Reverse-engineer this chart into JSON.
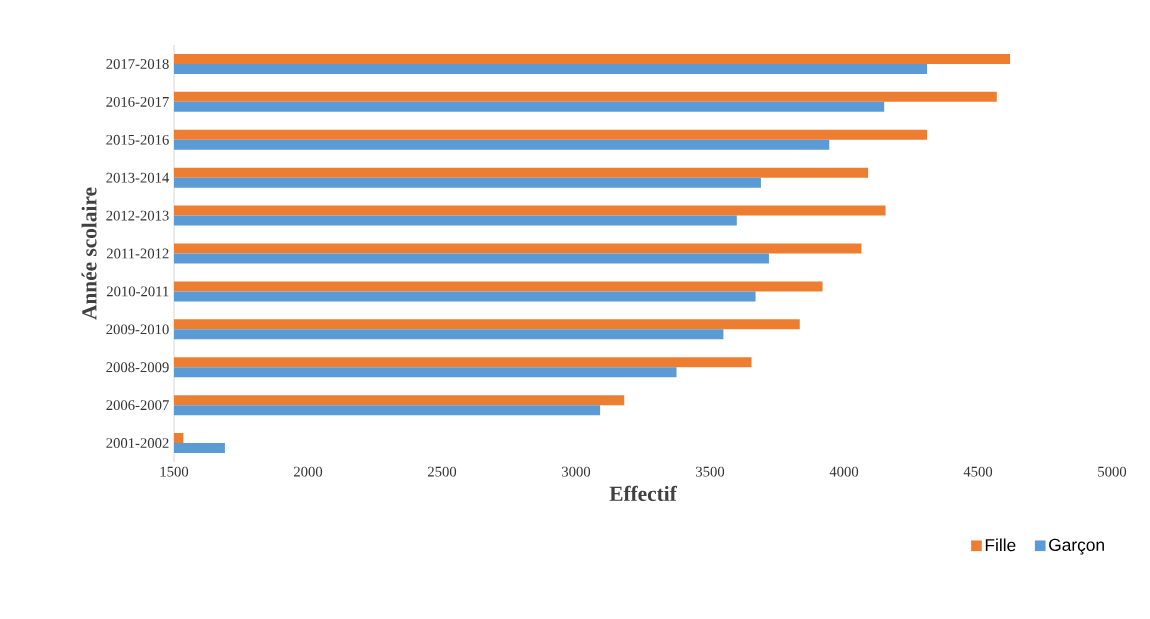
{
  "chart_data": {
    "type": "bar",
    "orientation": "horizontal",
    "xlabel": "Effectif",
    "ylabel": "Année scolaire",
    "categories": [
      "2017-2018",
      "2016-2017",
      "2015-2016",
      "2013-2014",
      "2012-2013",
      "2011-2012",
      "2010-2011",
      "2009-2010",
      "2008-2009",
      "2006-2007",
      "2001-2002"
    ],
    "series": [
      {
        "name": "Fille",
        "color": "#ed7d31",
        "values": [
          4620,
          4570,
          4310,
          4090,
          4155,
          4065,
          3920,
          3835,
          3655,
          3180,
          1535
        ]
      },
      {
        "name": "Garçon",
        "color": "#5b9bd5",
        "values": [
          4310,
          4150,
          3945,
          3690,
          3600,
          3720,
          3670,
          3550,
          3375,
          3090,
          1690
        ]
      }
    ],
    "xlim": [
      1500,
      5000
    ],
    "xticks": [
      1500,
      2000,
      2500,
      3000,
      3500,
      4000,
      4500,
      5000
    ],
    "grid": false,
    "legend": "bottom right"
  }
}
